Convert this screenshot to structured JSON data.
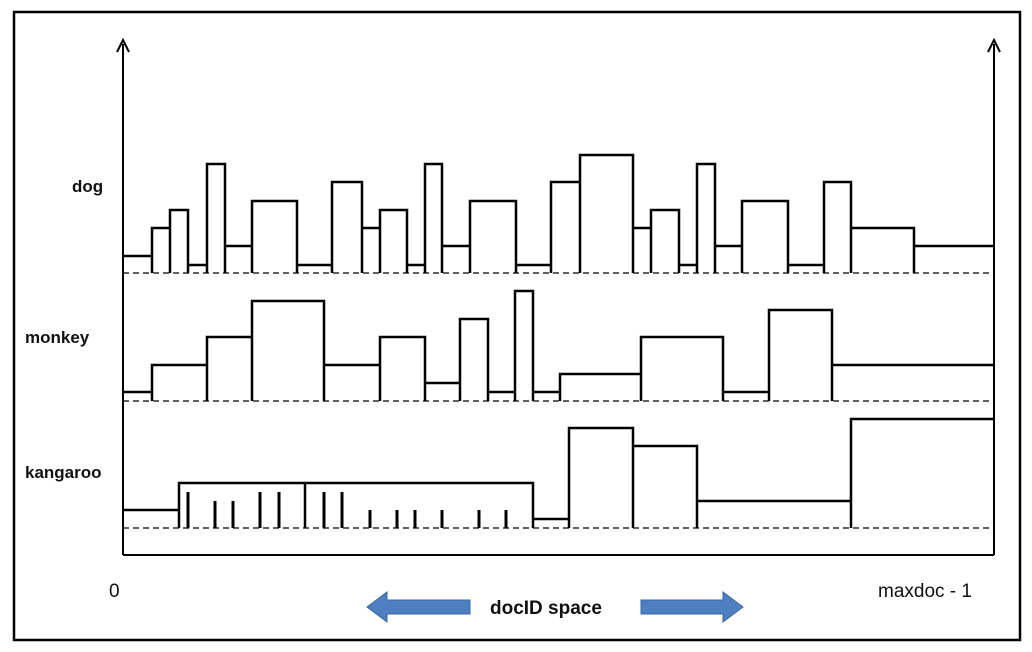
{
  "terms": [
    {
      "name": "dog"
    },
    {
      "name": "monkey"
    },
    {
      "name": "kangaroo"
    }
  ],
  "axis": {
    "left_label": "0",
    "right_label": "maxdoc - 1",
    "center_label": "docID space"
  },
  "colors": {
    "arrow": "#4e7fc0",
    "line": "#000000"
  }
}
